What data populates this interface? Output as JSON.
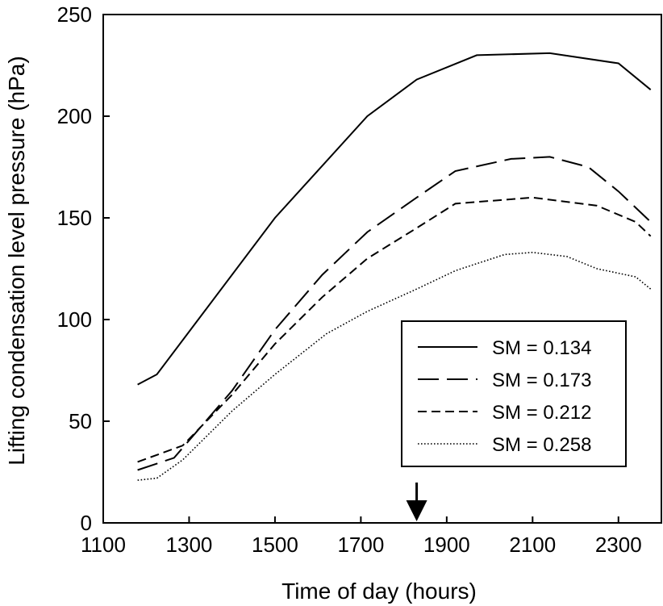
{
  "chart_data": {
    "type": "line",
    "title": "",
    "xlabel": "Time of day (hours)",
    "ylabel": "Lifting condensation level pressure (hPa)",
    "xlim": [
      1100,
      2400
    ],
    "ylim": [
      0,
      250
    ],
    "xticks": [
      1100,
      1300,
      1500,
      1700,
      1900,
      2100,
      2300
    ],
    "yticks": [
      0,
      50,
      100,
      150,
      200,
      250
    ],
    "grid": false,
    "legend_position": "bottom-right",
    "annotation": {
      "type": "down-arrow",
      "x": 1830
    },
    "series": [
      {
        "name": "SM = 0.134",
        "dash": "solid",
        "x": [
          1180,
          1225,
          1500,
          1715,
          1830,
          1970,
          2140,
          2300,
          2375
        ],
        "y": [
          68,
          73,
          150,
          200,
          218,
          230,
          231,
          226,
          213
        ]
      },
      {
        "name": "SM = 0.173",
        "dash": "long-dash",
        "x": [
          1180,
          1265,
          1400,
          1500,
          1610,
          1715,
          1830,
          1920,
          2050,
          2140,
          2230,
          2300,
          2375
        ],
        "y": [
          26,
          32,
          65,
          95,
          122,
          143,
          160,
          173,
          179,
          180,
          175,
          163,
          148
        ]
      },
      {
        "name": "SM = 0.212",
        "dash": "dash",
        "x": [
          1180,
          1285,
          1400,
          1500,
          1610,
          1715,
          1830,
          1920,
          2100,
          2250,
          2340,
          2375
        ],
        "y": [
          30,
          38,
          63,
          88,
          111,
          130,
          145,
          157,
          160,
          156,
          148,
          141
        ]
      },
      {
        "name": "SM = 0.258",
        "dash": "dotted",
        "x": [
          1180,
          1225,
          1285,
          1400,
          1500,
          1620,
          1715,
          1830,
          1920,
          2035,
          2100,
          2180,
          2250,
          2340,
          2375
        ],
        "y": [
          21,
          22,
          31,
          55,
          73,
          93,
          104,
          115,
          124,
          132,
          133,
          131,
          125,
          121,
          115
        ]
      }
    ]
  }
}
